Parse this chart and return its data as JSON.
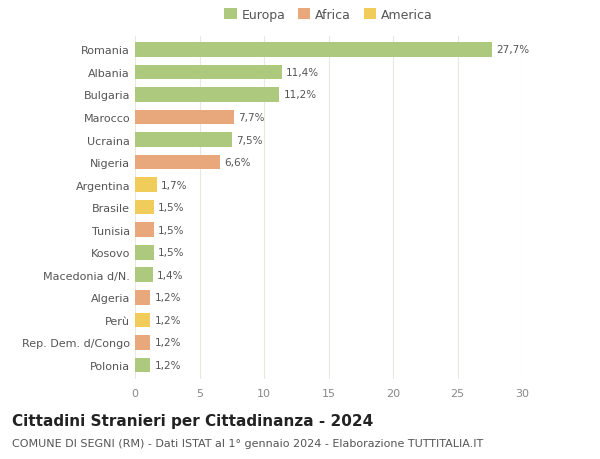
{
  "categories": [
    "Romania",
    "Albania",
    "Bulgaria",
    "Marocco",
    "Ucraina",
    "Nigeria",
    "Argentina",
    "Brasile",
    "Tunisia",
    "Kosovo",
    "Macedonia d/N.",
    "Algeria",
    "Perù",
    "Rep. Dem. d/Congo",
    "Polonia"
  ],
  "values": [
    27.7,
    11.4,
    11.2,
    7.7,
    7.5,
    6.6,
    1.7,
    1.5,
    1.5,
    1.5,
    1.4,
    1.2,
    1.2,
    1.2,
    1.2
  ],
  "labels": [
    "27,7%",
    "11,4%",
    "11,2%",
    "7,7%",
    "7,5%",
    "6,6%",
    "1,7%",
    "1,5%",
    "1,5%",
    "1,5%",
    "1,4%",
    "1,2%",
    "1,2%",
    "1,2%",
    "1,2%"
  ],
  "colors": [
    "#adc97e",
    "#adc97e",
    "#adc97e",
    "#e8a87c",
    "#adc97e",
    "#e8a87c",
    "#f0cc5a",
    "#f0cc5a",
    "#e8a87c",
    "#adc97e",
    "#adc97e",
    "#e8a87c",
    "#f0cc5a",
    "#e8a87c",
    "#adc97e"
  ],
  "legend_labels": [
    "Europa",
    "Africa",
    "America"
  ],
  "legend_colors": [
    "#adc97e",
    "#e8a87c",
    "#f0cc5a"
  ],
  "title": "Cittadini Stranieri per Cittadinanza - 2024",
  "subtitle": "COMUNE DI SEGNI (RM) - Dati ISTAT al 1° gennaio 2024 - Elaborazione TUTTITALIA.IT",
  "xlim": [
    0,
    30
  ],
  "xticks": [
    0,
    5,
    10,
    15,
    20,
    25,
    30
  ],
  "background_color": "#ffffff",
  "grid_color": "#e8e8de",
  "bar_height": 0.65,
  "title_fontsize": 11,
  "subtitle_fontsize": 8,
  "label_fontsize": 7.5,
  "tick_fontsize": 8,
  "legend_fontsize": 9
}
